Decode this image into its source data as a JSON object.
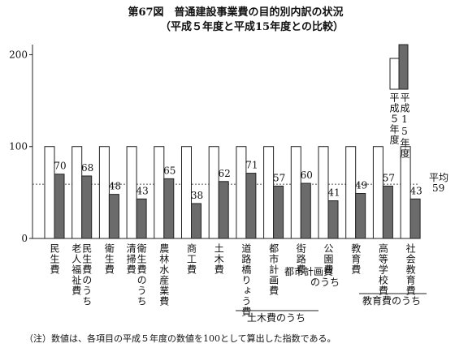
{
  "chart_data": {
    "type": "bar",
    "title": "第67図　普通建設事業費の目的別内訳の状況",
    "subtitle": "（平成５年度と平成15年度との比較）",
    "categories": [
      [
        "民生費"
      ],
      [
        "民生費のうち",
        "老人福祉費"
      ],
      [
        "衛生費"
      ],
      [
        "衛生費のうち",
        "清掃費"
      ],
      [
        "農林水産業費"
      ],
      [
        "商工費"
      ],
      [
        "土木費"
      ],
      [
        "道路橋りょう費"
      ],
      [
        "都市計画費"
      ],
      [
        "街路費"
      ],
      [
        "公園費"
      ],
      [
        "教育費"
      ],
      [
        "高等学校費"
      ],
      [
        "社会教育費"
      ]
    ],
    "series": [
      {
        "name": "平成５年度",
        "color": "#ffffff",
        "values": [
          100,
          100,
          100,
          100,
          100,
          100,
          100,
          100,
          100,
          100,
          100,
          100,
          100,
          100
        ]
      },
      {
        "name": "平成15年度",
        "color": "#6b6b6b",
        "values": [
          70,
          68,
          48,
          43,
          65,
          38,
          62,
          71,
          57,
          60,
          41,
          49,
          57,
          43
        ]
      }
    ],
    "ylim": [
      0,
      211
    ],
    "yticks": [
      0,
      100,
      200
    ],
    "average_line": {
      "label": "平均",
      "value": 59
    },
    "annotations": [
      [
        "都市計画費",
        "のうち"
      ],
      [
        "土木費のうち"
      ],
      [
        "教育費のうち"
      ]
    ],
    "note": "（注）数値は、各項目の平成５年度の数値を100として算出した指数である。"
  }
}
